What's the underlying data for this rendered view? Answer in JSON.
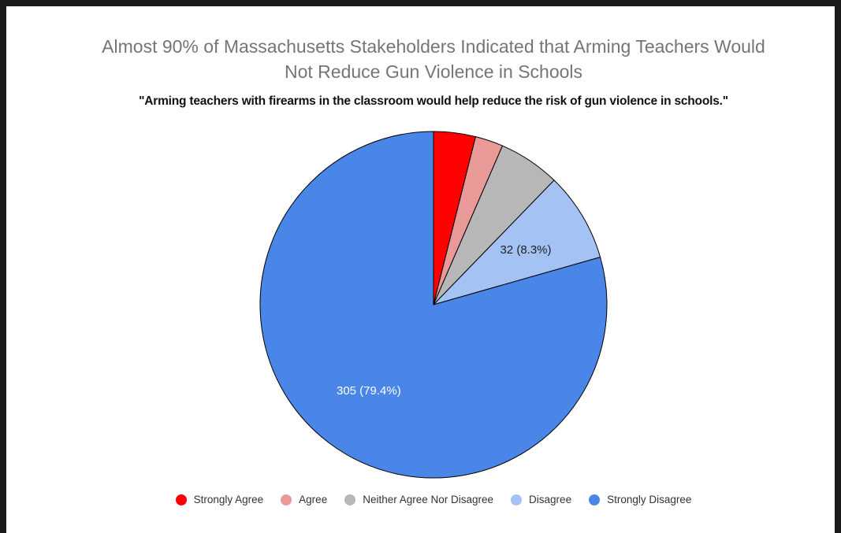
{
  "chart_data": {
    "type": "pie",
    "title_lines": [
      "Almost 90% of Massachusetts Stakeholders Indicated that Arming Teachers Would",
      "Not Reduce Gun Violence in Schools"
    ],
    "subtitle": "\"Arming teachers with firearms in the classroom would help reduce the risk of gun violence in schools.\"",
    "slices": [
      {
        "label": "Strongly Agree",
        "value": 15,
        "color": "#ff0000",
        "data_label": ""
      },
      {
        "label": "Agree",
        "value": 10,
        "color": "#ea9999",
        "data_label": ""
      },
      {
        "label": "Neither Agree Nor Disagree",
        "value": 22,
        "color": "#b7b7b7",
        "data_label": ""
      },
      {
        "label": "Disagree",
        "value": 32,
        "color": "#a4c2f4",
        "data_label": "32 (8.3%)"
      },
      {
        "label": "Strongly Disagree",
        "value": 305,
        "color": "#4a86e8",
        "data_label": "305 (79.4%)"
      }
    ],
    "legend_position": "bottom"
  }
}
